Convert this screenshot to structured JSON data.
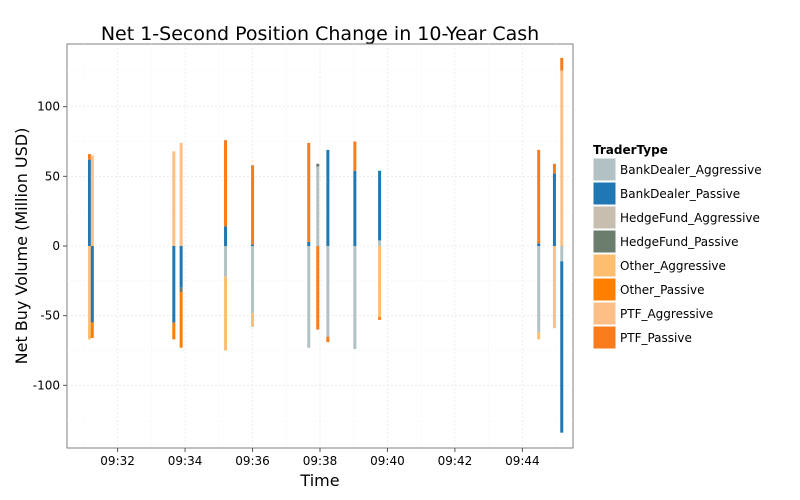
{
  "chart_data": {
    "type": "bar",
    "title": "Net 1-Second Position Change in 10-Year Cash",
    "xlabel": "Time",
    "ylabel": "Net Buy Volume (Million USD)",
    "x_ticks": [
      "09:32",
      "09:34",
      "09:36",
      "09:38",
      "09:40",
      "09:42",
      "09:44"
    ],
    "y_ticks": [
      100,
      50,
      0,
      -50,
      -100
    ],
    "xlim": [
      "09:30:30",
      "09:45:30"
    ],
    "ylim": [
      -145,
      145
    ],
    "grid": true,
    "legend": {
      "title": "TraderType",
      "placement": "right",
      "entries": [
        {
          "name": "BankDealer_Aggressive",
          "color": "#b2c2c4"
        },
        {
          "name": "BankDealer_Passive",
          "color": "#1f78b4"
        },
        {
          "name": "HedgeFund_Aggressive",
          "color": "#c7beb0"
        },
        {
          "name": "HedgeFund_Passive",
          "color": "#6b7e6e"
        },
        {
          "name": "Other_Aggressive",
          "color": "#fdbf6f"
        },
        {
          "name": "Other_Passive",
          "color": "#ff7f00"
        },
        {
          "name": "PTF_Aggressive",
          "color": "#fdbf85"
        },
        {
          "name": "PTF_Passive",
          "color": "#f87b1c"
        }
      ]
    },
    "bars": [
      {
        "time": "09:31:10",
        "segments": [
          {
            "type": "BankDealer_Passive",
            "start": 0,
            "end": 62
          },
          {
            "type": "PTF_Passive",
            "start": 62,
            "end": 66
          },
          {
            "type": "PTF_Aggressive",
            "start": -57,
            "end": 0
          },
          {
            "type": "Other_Aggressive",
            "start": -67,
            "end": -57
          }
        ]
      },
      {
        "time": "09:31:15",
        "segments": [
          {
            "type": "PTF_Aggressive",
            "start": 0,
            "end": 65
          },
          {
            "type": "BankDealer_Passive",
            "start": -55,
            "end": 0
          },
          {
            "type": "Other_Passive",
            "start": -66,
            "end": -55
          }
        ]
      },
      {
        "time": "09:33:40",
        "segments": [
          {
            "type": "PTF_Aggressive",
            "start": 0,
            "end": 68
          },
          {
            "type": "BankDealer_Passive",
            "start": -55,
            "end": 0
          },
          {
            "type": "Other_Passive",
            "start": -67,
            "end": -55
          }
        ]
      },
      {
        "time": "09:33:53",
        "segments": [
          {
            "type": "PTF_Aggressive",
            "start": 0,
            "end": 74
          },
          {
            "type": "BankDealer_Passive",
            "start": -30,
            "end": 0
          },
          {
            "type": "HedgeFund_Passive",
            "start": -33,
            "end": -30
          },
          {
            "type": "Other_Passive",
            "start": -73,
            "end": -33
          }
        ]
      },
      {
        "time": "09:35:12",
        "segments": [
          {
            "type": "BankDealer_Passive",
            "start": 0,
            "end": 14
          },
          {
            "type": "PTF_Passive",
            "start": 14,
            "end": 76
          },
          {
            "type": "BankDealer_Aggressive",
            "start": -22,
            "end": 0
          },
          {
            "type": "Other_Aggressive",
            "start": -75,
            "end": -22
          }
        ]
      },
      {
        "time": "09:36:00",
        "segments": [
          {
            "type": "BankDealer_Passive",
            "start": 0,
            "end": 1
          },
          {
            "type": "PTF_Passive",
            "start": 1,
            "end": 58
          },
          {
            "type": "BankDealer_Aggressive",
            "start": -48,
            "end": 0
          },
          {
            "type": "Other_Aggressive",
            "start": -58,
            "end": -48
          }
        ]
      },
      {
        "time": "09:37:40",
        "segments": [
          {
            "type": "BankDealer_Passive",
            "start": 0,
            "end": 3
          },
          {
            "type": "PTF_Passive",
            "start": 3,
            "end": 74
          },
          {
            "type": "BankDealer_Aggressive",
            "start": -73,
            "end": 0
          }
        ]
      },
      {
        "time": "09:37:56",
        "segments": [
          {
            "type": "BankDealer_Aggressive",
            "start": 0,
            "end": 57
          },
          {
            "type": "HedgeFund_Passive",
            "start": 57,
            "end": 59
          },
          {
            "type": "PTF_Passive",
            "start": -60,
            "end": 0
          }
        ]
      },
      {
        "time": "09:38:14",
        "segments": [
          {
            "type": "BankDealer_Passive",
            "start": 0,
            "end": 69
          },
          {
            "type": "BankDealer_Aggressive",
            "start": -65,
            "end": 0
          },
          {
            "type": "PTF_Passive",
            "start": -69,
            "end": -65
          }
        ]
      },
      {
        "time": "09:39:02",
        "segments": [
          {
            "type": "BankDealer_Passive",
            "start": 0,
            "end": 54
          },
          {
            "type": "PTF_Passive",
            "start": 54,
            "end": 75
          },
          {
            "type": "BankDealer_Aggressive",
            "start": -74,
            "end": 0
          }
        ]
      },
      {
        "time": "09:39:46",
        "segments": [
          {
            "type": "BankDealer_Aggressive",
            "start": 0,
            "end": 4
          },
          {
            "type": "BankDealer_Passive",
            "start": 4,
            "end": 54
          },
          {
            "type": "Other_Aggressive",
            "start": -51,
            "end": 0
          },
          {
            "type": "PTF_Passive",
            "start": -53,
            "end": -51
          }
        ]
      },
      {
        "time": "09:44:29",
        "segments": [
          {
            "type": "BankDealer_Passive",
            "start": 0,
            "end": 2
          },
          {
            "type": "PTF_Passive",
            "start": 2,
            "end": 69
          },
          {
            "type": "BankDealer_Aggressive",
            "start": -62,
            "end": 0
          },
          {
            "type": "Other_Aggressive",
            "start": -67,
            "end": -62
          }
        ]
      },
      {
        "time": "09:44:57",
        "segments": [
          {
            "type": "BankDealer_Passive",
            "start": 0,
            "end": 52
          },
          {
            "type": "PTF_Passive",
            "start": 52,
            "end": 59
          },
          {
            "type": "PTF_Aggressive",
            "start": -59,
            "end": 0
          }
        ]
      },
      {
        "time": "09:45:10",
        "segments": [
          {
            "type": "PTF_Aggressive",
            "start": 0,
            "end": 126
          },
          {
            "type": "PTF_Passive",
            "start": 126,
            "end": 135
          },
          {
            "type": "BankDealer_Aggressive",
            "start": -11,
            "end": 0
          },
          {
            "type": "BankDealer_Passive",
            "start": -134,
            "end": -11
          }
        ]
      }
    ]
  }
}
